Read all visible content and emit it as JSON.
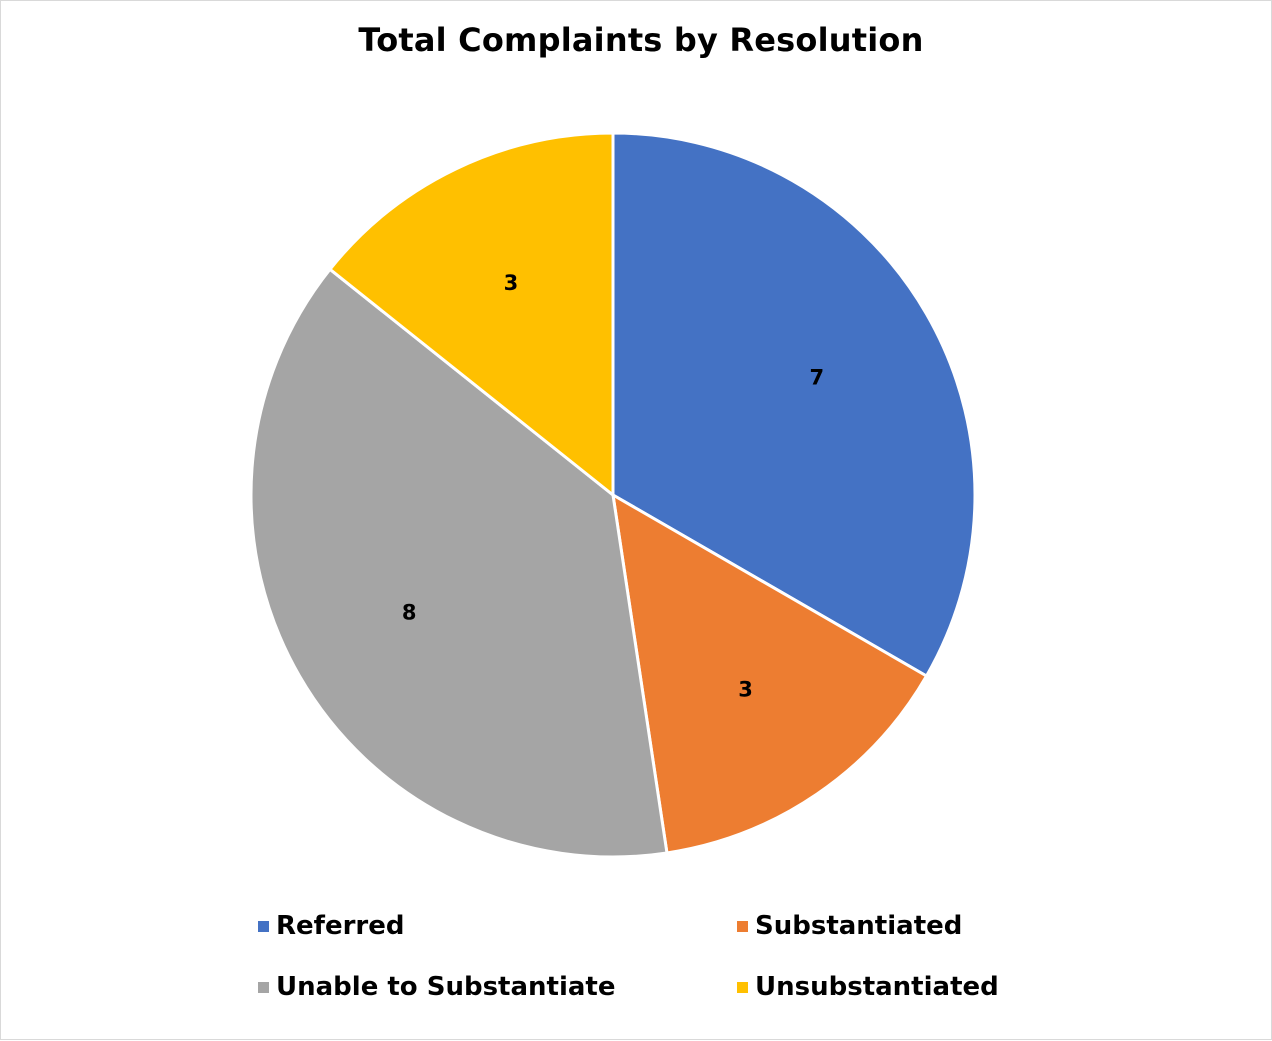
{
  "chart_data": {
    "type": "pie",
    "title": "Total Complaints by Resolution",
    "categories": [
      "Referred",
      "Substantiated",
      "Unable to Substantiate",
      "Unsubstantiated"
    ],
    "values": [
      7,
      3,
      8,
      3
    ],
    "colors": [
      "#4472C4",
      "#ED7D31",
      "#A5A5A5",
      "#FFC000"
    ],
    "data_labels": [
      "7",
      "3",
      "8",
      "3"
    ],
    "start_angle": "12 o'clock",
    "direction": "clockwise",
    "legend": {
      "placement": "bottom",
      "entries": [
        "Referred",
        "Substantiated",
        "Unable to Substantiate",
        "Unsubstantiated"
      ]
    }
  }
}
